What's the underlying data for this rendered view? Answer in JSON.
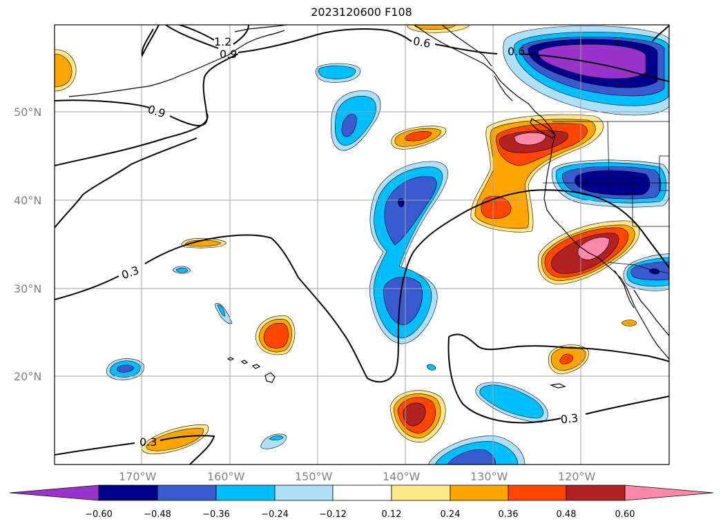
{
  "title": "2023120600 F108",
  "latitude_labels": [
    "50°N",
    "40°N",
    "30°N",
    "20°N"
  ],
  "longitude_labels": [
    "170°W",
    "160°W",
    "150°W",
    "140°W",
    "130°W",
    "120°W"
  ],
  "contour_labels": [
    "1.2",
    "0.9",
    "0.9",
    "0.6",
    "0.6",
    "0.3",
    "0.3",
    "0.3"
  ],
  "colorbar": {
    "tick_labels": [
      "−0.60",
      "−0.48",
      "−0.36",
      "−0.24",
      "−0.12",
      "0.12",
      "0.24",
      "0.36",
      "0.48",
      "0.60"
    ],
    "colors": [
      "#9933cc",
      "#00008b",
      "#3a5bd0",
      "#00bfff",
      "#aee0fa",
      "#ffffff",
      "#ffe888",
      "#ffa500",
      "#ff4500",
      "#b22222",
      "#ff88aa"
    ]
  }
}
